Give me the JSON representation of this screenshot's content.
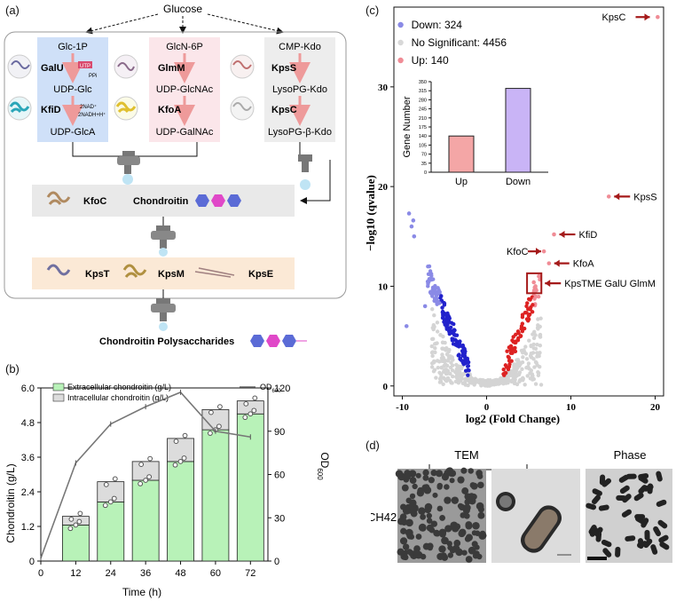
{
  "panel_a": {
    "label": "(a)",
    "glucose": "Glucose",
    "col1": {
      "top": "Glc-1P",
      "enzyme1": "GalU",
      "utp": "UTP",
      "ppi": "PPi",
      "mid": "UDP-Glc",
      "enzyme2": "KfiD",
      "nad": "2NAD⁺",
      "nadh": "2NADH+H⁺",
      "bottom": "UDP-GlcA"
    },
    "col2": {
      "top": "GlcN-6P",
      "enzyme1": "GlmM",
      "mid": "UDP-GlcNAc",
      "enzyme2": "KfoA",
      "bottom": "UDP-GalNAc"
    },
    "col3": {
      "top": "CMP-Kdo",
      "enzyme1": "KpsS",
      "mid": "LysoPG-Kdo",
      "enzyme2": "KpsC",
      "bottom": "LysoPG-β-Kdo"
    },
    "kfoc": "KfoC",
    "chondroitin": "Chondroitin",
    "kpst": "KpsT",
    "kpsm": "KpsM",
    "kpse": "KpsE",
    "final": "Chondroitin Polysaccharides"
  },
  "panel_b": {
    "label": "(b)",
    "chart_data": {
      "type": "bar",
      "x_categories": [
        "12",
        "24",
        "36",
        "48",
        "60",
        "72"
      ],
      "series": [
        {
          "name": "Extracellular chondroitin (g/L)",
          "values": [
            1.25,
            2.05,
            2.8,
            3.45,
            4.55,
            5.1
          ],
          "color": "#b8f2b8"
        },
        {
          "name": "Intracellular chondroitin (g/L)",
          "values": [
            0.3,
            0.7,
            0.65,
            0.8,
            0.7,
            0.45
          ],
          "color": "#dcdcdc"
        }
      ],
      "line": {
        "name": "OD600",
        "x": [
          0,
          12,
          24,
          36,
          48,
          60,
          72
        ],
        "values": [
          2,
          68,
          95,
          107,
          117,
          90,
          86
        ]
      },
      "xlabel": "Time (h)",
      "ylabel": "Chondroitin (g/L)",
      "y2label": "OD",
      "y2label_sub": "600",
      "legend_od": "OD",
      "legend_od_sub": "600",
      "x_ticks": [
        "0",
        "12",
        "24",
        "36",
        "48",
        "60",
        "72"
      ],
      "y_ticks": [
        "0",
        "1.2",
        "2.4",
        "3.6",
        "4.8",
        "6.0"
      ],
      "y2_ticks": [
        "0",
        "30",
        "60",
        "90",
        "120"
      ],
      "xlim": [
        0,
        78
      ],
      "ylim": [
        0,
        6.0
      ],
      "y2lim": [
        0,
        120
      ]
    }
  },
  "panel_c": {
    "label": "(c)",
    "chart_data": {
      "type": "scatter",
      "legend": [
        {
          "label": "Down: 324",
          "color": "#8a8ae6"
        },
        {
          "label": "No Significant: 4456",
          "color": "#d8d8d8"
        },
        {
          "label": "Up: 140",
          "color": "#f08c96"
        }
      ],
      "xlabel": "log2 (Fold Change)",
      "ylabel": "−log10 (qvalue)",
      "x_ticks": [
        "-10",
        "0",
        "10",
        "20"
      ],
      "y_ticks": [
        "0",
        "10",
        "20",
        "30"
      ],
      "xlim": [
        -11,
        21
      ],
      "ylim": [
        -1,
        38
      ],
      "annotations": [
        {
          "text": "KpsC",
          "x": 20,
          "y": 37
        },
        {
          "text": "KpsS",
          "x": 14.5,
          "y": 19
        },
        {
          "text": "KfiD",
          "x": 8,
          "y": 15.2
        },
        {
          "text": "KfoC",
          "x": 7,
          "y": 13.5
        },
        {
          "text": "KfoA",
          "x": 7.5,
          "y": 12.3
        },
        {
          "text": "KpsTME GalU GlmM",
          "x": 5.5,
          "y": 10.3
        }
      ],
      "inset": {
        "type": "bar",
        "categories": [
          "Up",
          "Down"
        ],
        "values": [
          140,
          324
        ],
        "colors": [
          "#f4a6a6",
          "#c9b4f6"
        ],
        "ylabel": "Gene Number",
        "y_ticks": [
          "0",
          "35",
          "70",
          "105",
          "140",
          "175",
          "210",
          "245",
          "280",
          "315",
          "350"
        ],
        "ylim": [
          0,
          350
        ]
      }
    }
  },
  "panel_d": {
    "label": "(d)",
    "tem": "TEM",
    "phase": "Phase",
    "strain": "CH42"
  }
}
